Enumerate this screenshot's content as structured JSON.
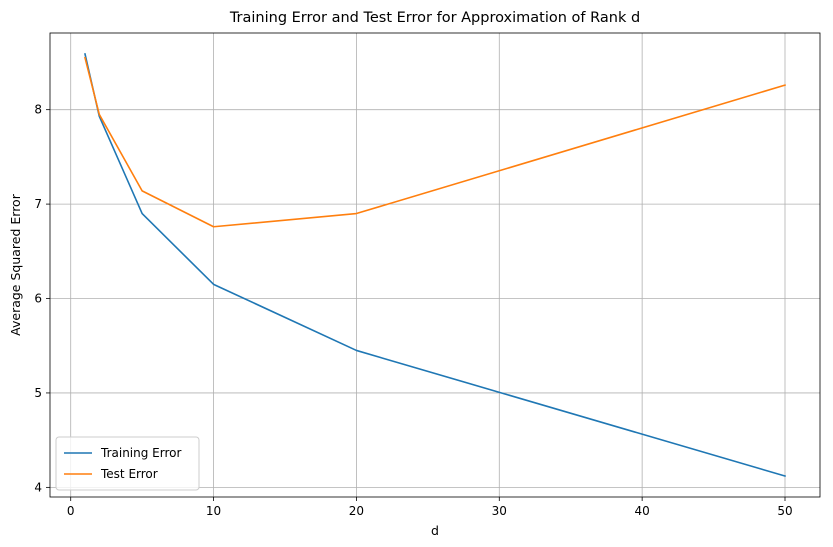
{
  "chart_data": {
    "type": "line",
    "title": "Training Error and Test Error for Approximation of Rank d",
    "xlabel": "d",
    "ylabel": "Average Squared Error",
    "x": [
      1,
      2,
      5,
      10,
      20,
      50
    ],
    "series": [
      {
        "name": "Training Error",
        "color": "#1f77b4",
        "values": [
          8.59,
          7.93,
          6.9,
          6.15,
          5.45,
          4.12
        ]
      },
      {
        "name": "Test Error",
        "color": "#ff7f0e",
        "values": [
          8.55,
          7.95,
          7.14,
          6.76,
          6.9,
          8.26
        ]
      }
    ],
    "xlim": [
      -1.45,
      52.45
    ],
    "ylim": [
      3.898,
      8.812
    ],
    "xticks": [
      0,
      10,
      20,
      30,
      40,
      50
    ],
    "yticks": [
      4,
      5,
      6,
      7,
      8
    ],
    "grid": true,
    "legend_position": "lower-left"
  }
}
